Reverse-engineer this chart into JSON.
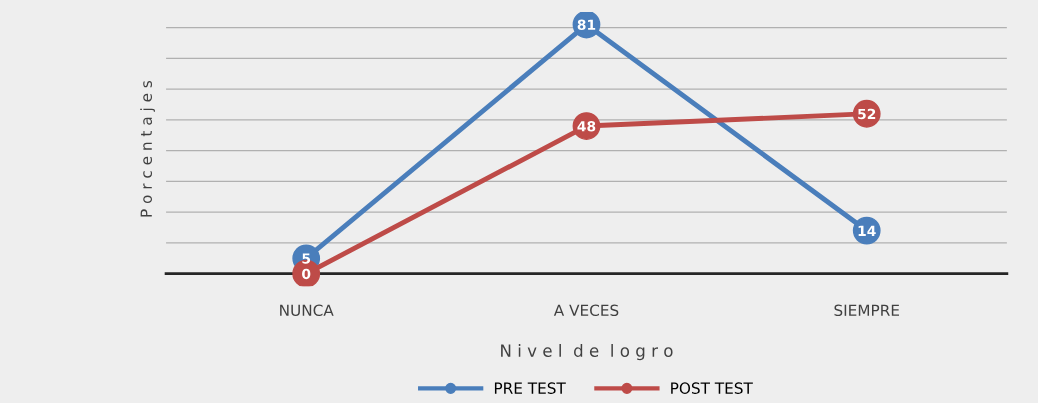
{
  "chart_data": {
    "type": "line",
    "xlabel": "N i v e l  d e  l o g r o",
    "ylabel": "P o r c e n t a j e s",
    "categories": [
      "NUNCA",
      "A VECES",
      "SIEMPRE"
    ],
    "series": [
      {
        "name": "PRE TEST",
        "color": "#4a7ebb",
        "values": [
          5,
          81,
          14
        ]
      },
      {
        "name": "POST TEST",
        "color": "#be4b48",
        "values": [
          0,
          48,
          52
        ]
      }
    ],
    "grid": "y",
    "legend": "bottom",
    "marker": "circle",
    "line_style": "solid",
    "data_labels": true,
    "tick_labels": "x"
  }
}
